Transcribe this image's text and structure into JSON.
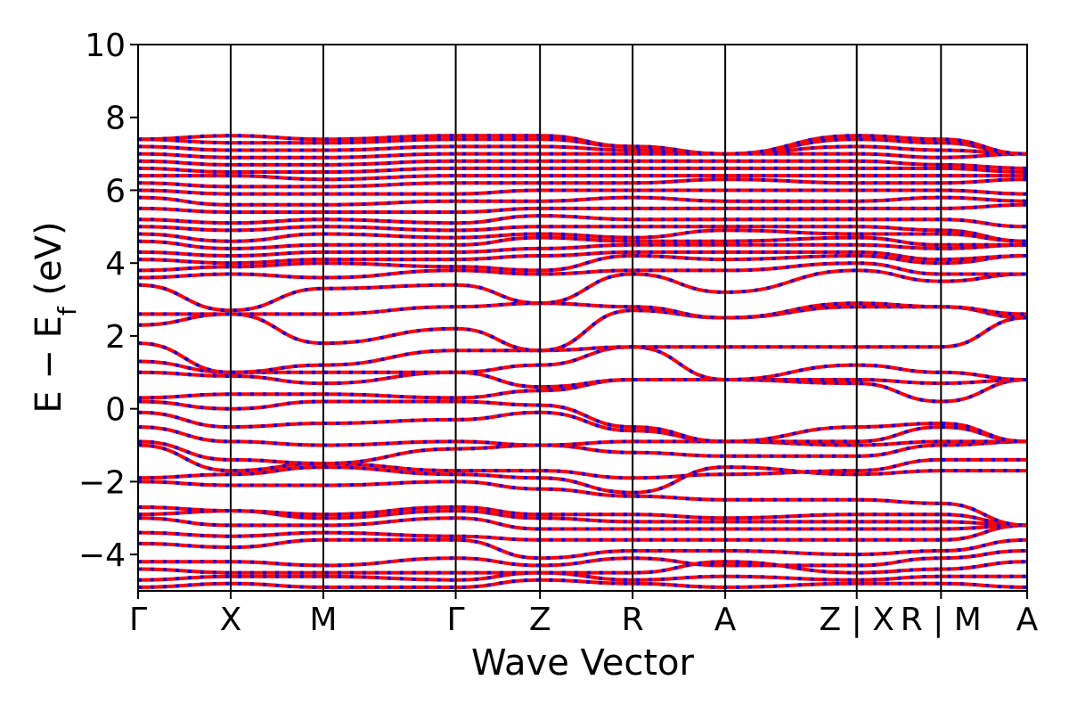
{
  "chart_data": {
    "type": "line",
    "title": "",
    "xlabel": "Wave Vector",
    "ylabel_main": "E − E",
    "ylabel_sub": "f",
    "ylabel_unit": " (eV)",
    "ylim": [
      -5,
      10
    ],
    "yticks": [
      -4,
      -2,
      0,
      2,
      4,
      6,
      8,
      10
    ],
    "ytick_labels": [
      "−4",
      "−2",
      "0",
      "2",
      "4",
      "6",
      "8",
      "10"
    ],
    "kpath_positions": [
      0,
      1,
      2,
      3.43,
      4.34,
      5.34,
      6.34,
      7.76,
      8.67,
      9.6
    ],
    "kpath_labels": [
      "Γ",
      "X",
      "M",
      "Γ",
      "Z",
      "R",
      "A",
      "Z | X",
      "R | M",
      "A"
    ],
    "xlim": [
      0,
      9.6
    ],
    "grid": false,
    "legend": "none",
    "colors": {
      "spin_up": "#ff0000",
      "spin_down": "#0000ff",
      "axes": "#000000"
    },
    "bands_at_kpoints": [
      [
        -4.9,
        -4.8,
        -4.9,
        -4.9,
        -4.7,
        -4.8,
        -4.9,
        -4.8,
        -4.8,
        -4.9
      ],
      [
        -4.7,
        -4.6,
        -4.6,
        -4.7,
        -4.5,
        -4.7,
        -4.6,
        -4.7,
        -4.6,
        -4.6
      ],
      [
        -4.4,
        -4.5,
        -4.5,
        -4.5,
        -4.5,
        -4.5,
        -4.2,
        -4.5,
        -4.4,
        -4.2
      ],
      [
        -4.2,
        -4.2,
        -4.3,
        -4.1,
        -4.3,
        -4.1,
        -4.3,
        -4.3,
        -4.1,
        -3.9
      ],
      [
        -3.7,
        -3.8,
        -3.6,
        -3.6,
        -4.1,
        -3.9,
        -3.9,
        -4.0,
        -3.9,
        -3.6
      ],
      [
        -3.4,
        -3.5,
        -3.4,
        -3.5,
        -3.6,
        -3.6,
        -3.6,
        -3.6,
        -3.6,
        -3.2
      ],
      [
        -3.0,
        -3.2,
        -3.2,
        -3.0,
        -3.3,
        -3.3,
        -3.3,
        -3.3,
        -3.3,
        -3.2
      ],
      [
        -2.9,
        -2.8,
        -3.0,
        -2.8,
        -3.0,
        -3.1,
        -3.1,
        -3.1,
        -3.1,
        -3.2
      ],
      [
        -2.7,
        -2.8,
        -2.9,
        -2.7,
        -2.9,
        -2.9,
        -3.0,
        -2.9,
        -2.9,
        -3.2
      ],
      [
        -2.0,
        -2.1,
        -2.1,
        -2.0,
        -2.2,
        -2.4,
        -2.5,
        -2.5,
        -2.6,
        -3.2
      ],
      [
        -1.9,
        -1.8,
        -1.6,
        -1.8,
        -1.9,
        -2.3,
        -1.6,
        -1.8,
        -1.7,
        -1.7
      ],
      [
        -1.0,
        -1.7,
        -1.5,
        -1.7,
        -1.7,
        -1.9,
        -1.8,
        -1.7,
        -1.4,
        -1.4
      ],
      [
        -0.9,
        -1.4,
        -1.5,
        -1.1,
        -1.0,
        -1.2,
        -1.3,
        -1.3,
        -1.0,
        -0.9
      ],
      [
        -0.5,
        -0.9,
        -1.0,
        -0.9,
        -1.0,
        -0.9,
        -0.9,
        -1.0,
        -0.9,
        -0.9
      ],
      [
        -0.1,
        -0.5,
        -0.4,
        -0.3,
        -0.1,
        -0.6,
        -0.9,
        -0.9,
        -0.5,
        -0.9
      ],
      [
        0.2,
        0.0,
        0.2,
        0.2,
        0.1,
        -0.5,
        -0.9,
        -0.5,
        -0.4,
        -0.9
      ],
      [
        0.3,
        0.4,
        0.4,
        0.3,
        0.5,
        0.8,
        0.8,
        0.7,
        0.2,
        0.8
      ],
      [
        1.0,
        0.9,
        0.7,
        1.0,
        0.6,
        0.8,
        0.8,
        0.8,
        0.7,
        0.8
      ],
      [
        1.3,
        1.0,
        1.0,
        1.0,
        1.2,
        1.7,
        0.8,
        1.2,
        1.0,
        0.8
      ],
      [
        1.8,
        1.0,
        1.2,
        1.6,
        1.6,
        1.7,
        1.7,
        1.7,
        1.7,
        2.5
      ],
      [
        2.3,
        2.6,
        1.8,
        2.2,
        1.6,
        2.7,
        2.5,
        2.8,
        2.8,
        2.5
      ],
      [
        2.6,
        2.6,
        2.6,
        2.8,
        2.9,
        2.8,
        2.5,
        2.9,
        2.8,
        2.6
      ],
      [
        3.4,
        2.7,
        3.3,
        3.4,
        2.9,
        3.7,
        3.2,
        3.8,
        3.5,
        3.7
      ],
      [
        3.6,
        3.7,
        3.6,
        3.8,
        3.7,
        3.8,
        3.8,
        4.0,
        3.7,
        3.7
      ],
      [
        3.8,
        3.9,
        4.0,
        3.9,
        3.8,
        4.2,
        4.1,
        4.2,
        4.0,
        4.2
      ],
      [
        4.1,
        4.0,
        4.1,
        4.1,
        4.2,
        4.3,
        4.3,
        4.3,
        4.1,
        4.2
      ],
      [
        4.3,
        4.2,
        4.3,
        4.3,
        4.4,
        4.5,
        4.5,
        4.5,
        4.4,
        4.5
      ],
      [
        4.6,
        4.4,
        4.5,
        4.5,
        4.7,
        4.6,
        4.6,
        4.7,
        4.5,
        4.5
      ],
      [
        4.8,
        4.6,
        4.8,
        4.7,
        4.8,
        4.7,
        4.9,
        4.8,
        4.8,
        4.6
      ],
      [
        5.0,
        4.9,
        5.0,
        4.9,
        5.0,
        5.0,
        5.0,
        5.0,
        4.9,
        4.6
      ],
      [
        5.2,
        5.1,
        5.2,
        5.1,
        5.3,
        5.2,
        5.2,
        5.2,
        5.2,
        5.0
      ],
      [
        5.5,
        5.4,
        5.4,
        5.4,
        5.5,
        5.5,
        5.5,
        5.5,
        5.5,
        5.6
      ],
      [
        5.8,
        5.6,
        5.6,
        5.7,
        5.7,
        5.8,
        5.7,
        5.7,
        5.8,
        5.7
      ],
      [
        6.0,
        5.9,
        5.9,
        5.9,
        6.0,
        6.0,
        6.0,
        6.0,
        6.0,
        5.9
      ],
      [
        6.2,
        6.1,
        6.1,
        6.2,
        6.2,
        6.2,
        6.3,
        6.2,
        6.2,
        6.3
      ],
      [
        6.4,
        6.4,
        6.3,
        6.4,
        6.4,
        6.4,
        6.4,
        6.4,
        6.4,
        6.4
      ],
      [
        6.6,
        6.5,
        6.5,
        6.6,
        6.6,
        6.6,
        6.6,
        6.6,
        6.6,
        6.5
      ],
      [
        6.8,
        6.7,
        6.7,
        6.8,
        6.8,
        6.8,
        6.8,
        6.8,
        6.7,
        6.6
      ],
      [
        7.0,
        6.9,
        6.9,
        7.0,
        7.0,
        7.0,
        7.0,
        7.0,
        6.9,
        7.0
      ],
      [
        7.2,
        7.1,
        7.1,
        7.2,
        7.2,
        7.1,
        7.0,
        7.2,
        7.1,
        7.0
      ],
      [
        7.4,
        7.3,
        7.3,
        7.4,
        7.4,
        7.2,
        7.0,
        7.4,
        7.3,
        7.0
      ],
      [
        7.4,
        7.5,
        7.4,
        7.5,
        7.5,
        7.2,
        7.0,
        7.5,
        7.4,
        7.0
      ]
    ]
  }
}
